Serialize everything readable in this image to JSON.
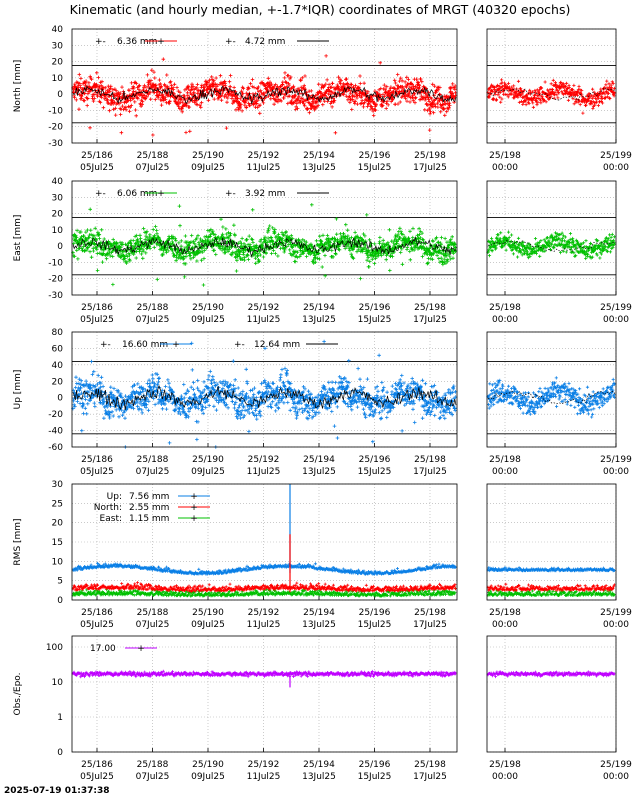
{
  "title": "Kinematic (and hourly median, +-1.7*IQR) coordinates of MRGT (40320 epochs)",
  "timestamp": "2025-07-19 01:37:38",
  "colors": {
    "north": "#ff0000",
    "east": "#00c000",
    "up": "#0a7fe6",
    "obs": "#bf00ff",
    "median": "#000000"
  },
  "chart_data": [
    {
      "id": "north",
      "type": "scatter",
      "ylabel": "North [mm]",
      "ylim": [
        -30,
        40
      ],
      "yticks": [
        -30,
        -20,
        -10,
        0,
        10,
        20,
        30,
        40
      ],
      "limit_lines": [
        17.6,
        -17.6
      ],
      "legend": [
        {
          "label": "6.36 mm",
          "color": "#ff0000"
        },
        {
          "label": "4.72 mm",
          "color": "#000000"
        }
      ],
      "spread": 9,
      "extreme": 26
    },
    {
      "id": "east",
      "type": "scatter",
      "ylabel": "East [mm]",
      "ylim": [
        -30,
        40
      ],
      "yticks": [
        -30,
        -20,
        -10,
        0,
        10,
        20,
        30,
        40
      ],
      "limit_lines": [
        17.6,
        -17.6
      ],
      "legend": [
        {
          "label": "6.06 mm",
          "color": "#00c000"
        },
        {
          "label": "3.92 mm",
          "color": "#000000"
        }
      ],
      "spread": 8.5,
      "extreme": 26
    },
    {
      "id": "up",
      "type": "scatter",
      "ylabel": "Up [mm]",
      "ylim": [
        -60,
        80
      ],
      "yticks": [
        -60,
        -40,
        -20,
        0,
        20,
        40,
        60,
        80
      ],
      "limit_lines": [
        44,
        -44
      ],
      "legend": [
        {
          "label": "16.60 mm",
          "color": "#0a7fe6"
        },
        {
          "label": "12.64 mm",
          "color": "#000000"
        }
      ],
      "spread": 22,
      "extreme": 70
    },
    {
      "id": "rms",
      "type": "line",
      "ylabel": "RMS [mm]",
      "ylim": [
        0,
        30
      ],
      "yticks": [
        0,
        5,
        10,
        15,
        20,
        25,
        30
      ],
      "series": [
        {
          "name": "Up:",
          "label": "7.56 mm",
          "color": "#0a7fe6",
          "mean": 7.56
        },
        {
          "name": "North:",
          "label": "2.55 mm",
          "color": "#ff0000",
          "mean": 2.55
        },
        {
          "name": "East:",
          "label": "1.15 mm",
          "color": "#00c000",
          "mean": 1.15
        }
      ]
    },
    {
      "id": "obs",
      "type": "scatter",
      "ylabel": "Obs./Epo.",
      "yscale": "log",
      "ylim": [
        0,
        100
      ],
      "ytick_labels": [
        "0",
        "1",
        "10",
        "100"
      ],
      "legend": [
        {
          "label": "17.00",
          "color": "#bf00ff"
        }
      ],
      "mean": 17.0
    }
  ],
  "x_ticks_main": [
    {
      "week": "25/186",
      "date": "05Jul25"
    },
    {
      "week": "25/188",
      "date": "07Jul25"
    },
    {
      "week": "25/190",
      "date": "09Jul25"
    },
    {
      "week": "25/192",
      "date": "11Jul25"
    },
    {
      "week": "25/194",
      "date": "13Jul25"
    },
    {
      "week": "25/196",
      "date": "15Jul25"
    },
    {
      "week": "25/198",
      "date": "17Jul25"
    }
  ],
  "x_ticks_zoom": [
    {
      "week": "25/198",
      "date": "00:00"
    },
    {
      "week": "25/199",
      "date": "00:00"
    }
  ]
}
